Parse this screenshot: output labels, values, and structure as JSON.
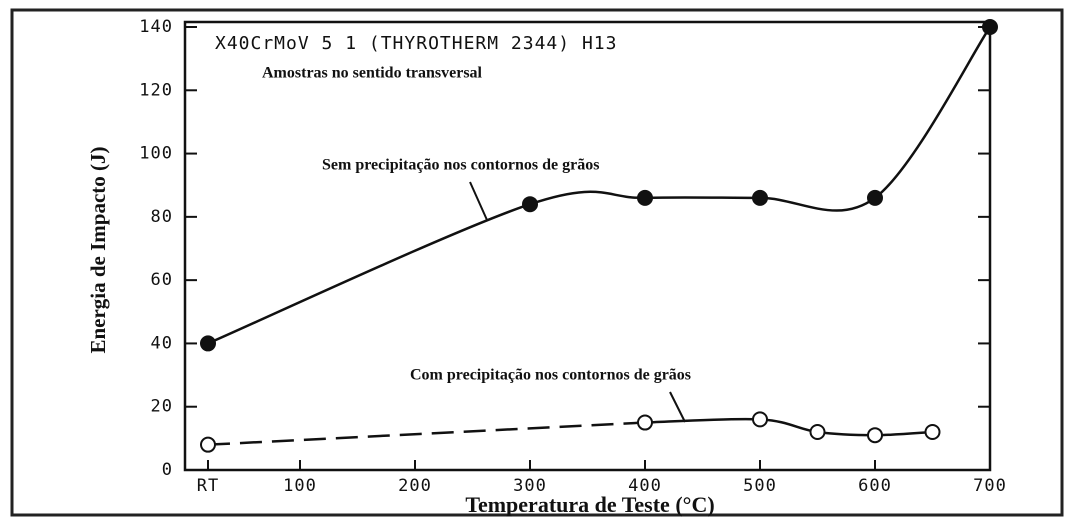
{
  "chart_data": {
    "type": "line",
    "title": "X40CrMoV 5 1 (THYROTHERM 2344)  H13",
    "subtitle": "Amostras no sentido transversal",
    "x_label": "Temperatura de Teste (°C)",
    "y_label": "Energia de Impacto (J)",
    "xlim": [
      0,
      700
    ],
    "ylim": [
      0,
      140
    ],
    "xticks": [
      {
        "value": 20,
        "label": "RT"
      },
      100,
      200,
      300,
      400,
      500,
      600,
      700
    ],
    "yticks": [
      0,
      20,
      40,
      60,
      80,
      100,
      120,
      140
    ],
    "series": [
      {
        "name": "Sem precipitação nos contornos de grãos",
        "color": "#111",
        "x": [
          20,
          300,
          400,
          500,
          600,
          700
        ],
        "values": [
          40,
          84,
          86,
          86,
          86,
          140
        ]
      },
      {
        "name": "Com precipitação nos contornos de grãos",
        "color": "#111",
        "x": [
          20,
          400,
          500,
          550,
          600,
          650
        ],
        "values": [
          8,
          15,
          16,
          12,
          11,
          12
        ]
      }
    ]
  }
}
